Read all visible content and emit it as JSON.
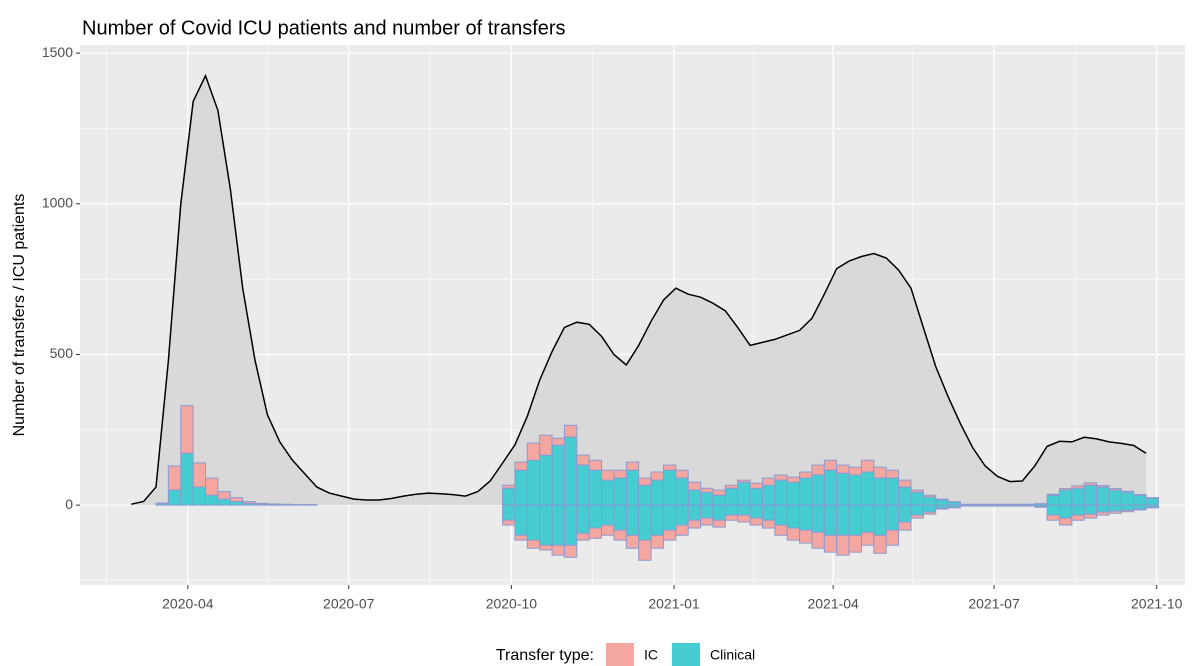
{
  "chart_data": {
    "type": "combo",
    "title": "Number of Covid ICU patients and number of transfers",
    "y_label": "Number of transfers / ICU patients",
    "xlim": [
      "2020-01-31",
      "2021-10-17"
    ],
    "xticks": [
      {
        "value": "2020-04-01",
        "label": "2020-04"
      },
      {
        "value": "2020-07-01",
        "label": "2020-07"
      },
      {
        "value": "2020-10-01",
        "label": "2020-10"
      },
      {
        "value": "2021-01-01",
        "label": "2021-01"
      },
      {
        "value": "2021-04-01",
        "label": "2021-04"
      },
      {
        "value": "2021-07-01",
        "label": "2021-07"
      },
      {
        "value": "2021-10-01",
        "label": "2021-10"
      }
    ],
    "x_minor_ticks": [
      "2020-02-15",
      "2020-05-16",
      "2020-08-16",
      "2020-11-16",
      "2021-02-15",
      "2021-05-16",
      "2021-08-16"
    ],
    "ylim": [
      -265,
      1527
    ],
    "yticks": [
      0,
      500,
      1000,
      1500
    ],
    "y_minor_ticks": [
      -250,
      250,
      750,
      1250
    ],
    "grid": true,
    "layers": [
      {
        "type": "area-line",
        "color": "#000000",
        "fill": "#d9d9d9",
        "x": [
          "2020-02-29",
          "2020-03-07",
          "2020-03-14",
          "2020-03-21",
          "2020-03-28",
          "2020-04-04",
          "2020-04-11",
          "2020-04-18",
          "2020-04-25",
          "2020-05-02",
          "2020-05-09",
          "2020-05-16",
          "2020-05-23",
          "2020-05-30",
          "2020-06-06",
          "2020-06-13",
          "2020-06-20",
          "2020-06-27",
          "2020-07-04",
          "2020-07-11",
          "2020-07-18",
          "2020-07-25",
          "2020-08-01",
          "2020-08-08",
          "2020-08-15",
          "2020-08-22",
          "2020-08-29",
          "2020-09-05",
          "2020-09-12",
          "2020-09-19",
          "2020-09-26",
          "2020-10-03",
          "2020-10-10",
          "2020-10-17",
          "2020-10-24",
          "2020-10-31",
          "2020-11-07",
          "2020-11-14",
          "2020-11-21",
          "2020-11-28",
          "2020-12-05",
          "2020-12-12",
          "2020-12-19",
          "2020-12-26",
          "2021-01-02",
          "2021-01-09",
          "2021-01-16",
          "2021-01-23",
          "2021-01-30",
          "2021-02-06",
          "2021-02-13",
          "2021-02-20",
          "2021-02-27",
          "2021-03-06",
          "2021-03-13",
          "2021-03-20",
          "2021-03-27",
          "2021-04-03",
          "2021-04-10",
          "2021-04-17",
          "2021-04-24",
          "2021-05-01",
          "2021-05-08",
          "2021-05-15",
          "2021-05-22",
          "2021-05-29",
          "2021-06-05",
          "2021-06-12",
          "2021-06-19",
          "2021-06-26",
          "2021-07-03",
          "2021-07-10",
          "2021-07-17",
          "2021-07-24",
          "2021-07-31",
          "2021-08-07",
          "2021-08-14",
          "2021-08-21",
          "2021-08-28",
          "2021-09-04",
          "2021-09-11",
          "2021-09-18",
          "2021-09-25"
        ],
        "values": [
          3,
          12,
          60,
          480,
          1000,
          1340,
          1425,
          1310,
          1050,
          720,
          481,
          300,
          210,
          150,
          105,
          60,
          40,
          30,
          20,
          17,
          17,
          22,
          30,
          36,
          40,
          38,
          35,
          30,
          45,
          80,
          140,
          200,
          295,
          415,
          510,
          590,
          607,
          600,
          560,
          500,
          465,
          530,
          610,
          680,
          720,
          700,
          690,
          670,
          645,
          590,
          530,
          540,
          550,
          565,
          580,
          620,
          700,
          785,
          810,
          825,
          835,
          820,
          780,
          720,
          590,
          460,
          360,
          270,
          190,
          130,
          95,
          78,
          80,
          130,
          195,
          212,
          210,
          225,
          220,
          210,
          205,
          198,
          172
        ]
      },
      {
        "type": "histogram",
        "stroke": "#8c9ad0",
        "bins": [
          "2020-03-14",
          "2020-03-21",
          "2020-03-28",
          "2020-04-04",
          "2020-04-11",
          "2020-04-18",
          "2020-04-25",
          "2020-05-02",
          "2020-05-09",
          "2020-05-16",
          "2020-05-23",
          "2020-05-30",
          "2020-06-06",
          "2020-06-13",
          "2020-06-20",
          "2020-06-27",
          "2020-07-04",
          "2020-07-11",
          "2020-07-18",
          "2020-07-25",
          "2020-08-01",
          "2020-08-08",
          "2020-08-15",
          "2020-08-22",
          "2020-08-29",
          "2020-09-05",
          "2020-09-12",
          "2020-09-19",
          "2020-09-26",
          "2020-10-03",
          "2020-10-10",
          "2020-10-17",
          "2020-10-24",
          "2020-10-31",
          "2020-11-07",
          "2020-11-14",
          "2020-11-21",
          "2020-11-28",
          "2020-12-05",
          "2020-12-12",
          "2020-12-19",
          "2020-12-26",
          "2021-01-02",
          "2021-01-09",
          "2021-01-16",
          "2021-01-23",
          "2021-01-30",
          "2021-02-06",
          "2021-02-13",
          "2021-02-20",
          "2021-02-27",
          "2021-03-06",
          "2021-03-13",
          "2021-03-20",
          "2021-03-27",
          "2021-04-03",
          "2021-04-10",
          "2021-04-17",
          "2021-04-24",
          "2021-05-01",
          "2021-05-08",
          "2021-05-15",
          "2021-05-22",
          "2021-05-29",
          "2021-06-05",
          "2021-06-12",
          "2021-06-19",
          "2021-06-26",
          "2021-07-03",
          "2021-07-10",
          "2021-07-17",
          "2021-07-24",
          "2021-07-31",
          "2021-08-07",
          "2021-08-14",
          "2021-08-21",
          "2021-08-28",
          "2021-09-04",
          "2021-09-11",
          "2021-09-18",
          "2021-09-25",
          "2021-10-02"
        ],
        "series": [
          {
            "name": "IC",
            "color": "#f4a6a1",
            "values": [
              2,
              80,
              158,
              80,
              57,
              25,
              13,
              6,
              3,
              2,
              1,
              1,
              1,
              0,
              0,
              0,
              0,
              0,
              0,
              0,
              0,
              0,
              0,
              0,
              0,
              0,
              0,
              0,
              10,
              27,
              57,
              66,
              23,
              39,
              33,
              33,
              33,
              26,
              27,
              24,
              27,
              17,
              26,
              26,
              13,
              17,
              10,
              7,
              17,
              24,
              17,
              17,
              20,
              33,
              33,
              27,
              26,
              39,
              36,
              26,
              23,
              7,
              6,
              3,
              2,
              0,
              0,
              0,
              0,
              0,
              0,
              0,
              3,
              5,
              8,
              8,
              5,
              5,
              3,
              2,
              2
            ],
            "negative_values": [
              0,
              0,
              0,
              0,
              0,
              0,
              0,
              0,
              0,
              0,
              0,
              0,
              0,
              0,
              0,
              0,
              0,
              0,
              0,
              0,
              0,
              0,
              0,
              0,
              0,
              0,
              0,
              0,
              -16,
              -16,
              -27,
              -16,
              -33,
              -40,
              -23,
              -34,
              -34,
              -33,
              -43,
              -67,
              -43,
              -33,
              -34,
              -26,
              -23,
              -23,
              -17,
              -23,
              -23,
              -26,
              -34,
              -40,
              -43,
              -53,
              -56,
              -66,
              -56,
              -43,
              -60,
              -50,
              -27,
              -10,
              -7,
              -3,
              -2,
              0,
              0,
              0,
              0,
              0,
              0,
              -2,
              -17,
              -23,
              -17,
              -13,
              -10,
              -7,
              -5,
              -3,
              -2
            ]
          },
          {
            "name": "Clinical",
            "color": "#45cdd2",
            "values": [
              5,
              50,
              172,
              60,
              33,
              20,
              12,
              6,
              3,
              2,
              2,
              1,
              1,
              0,
              0,
              0,
              0,
              0,
              0,
              0,
              0,
              0,
              0,
              0,
              0,
              0,
              0,
              0,
              56,
              116,
              149,
              166,
              199,
              226,
              133,
              116,
              83,
              90,
              116,
              66,
              83,
              116,
              90,
              50,
              43,
              33,
              56,
              76,
              56,
              66,
              83,
              76,
              90,
              100,
              116,
              106,
              100,
              110,
              90,
              90,
              60,
              43,
              27,
              17,
              10,
              3,
              3,
              3,
              3,
              3,
              3,
              5,
              33,
              50,
              56,
              66,
              60,
              50,
              43,
              33,
              23
            ],
            "negative_values": [
              0,
              0,
              0,
              0,
              0,
              0,
              0,
              0,
              0,
              0,
              0,
              0,
              0,
              0,
              0,
              0,
              0,
              0,
              0,
              0,
              0,
              0,
              0,
              0,
              0,
              0,
              0,
              0,
              -50,
              -100,
              -116,
              -133,
              -133,
              -133,
              -93,
              -76,
              -66,
              -83,
              -100,
              -116,
              -100,
              -83,
              -66,
              -50,
              -43,
              -50,
              -33,
              -33,
              -43,
              -50,
              -66,
              -76,
              -83,
              -90,
              -100,
              -100,
              -100,
              -90,
              -100,
              -83,
              -56,
              -33,
              -23,
              -10,
              -7,
              -3,
              -3,
              -3,
              -3,
              -3,
              -3,
              -5,
              -33,
              -43,
              -33,
              -30,
              -23,
              -20,
              -17,
              -13,
              -7
            ]
          }
        ]
      }
    ],
    "legend": {
      "title": "Transfer type:",
      "position": "bottom"
    }
  }
}
